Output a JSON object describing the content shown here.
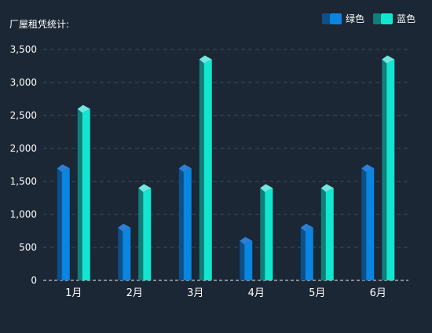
{
  "chart_data": {
    "type": "bar",
    "title": "厂屋租凭统计:",
    "categories": [
      "1月",
      "2月",
      "3月",
      "4月",
      "5月",
      "6月"
    ],
    "series": [
      {
        "name": "绿色",
        "values": [
          1700,
          800,
          1700,
          600,
          800,
          1700
        ],
        "color_front": "#0a85e0",
        "color_side": "#0d4f88",
        "color_top": "#2a7fd6"
      },
      {
        "name": "蓝色",
        "values": [
          2600,
          1400,
          3350,
          1400,
          1400,
          3350
        ],
        "color_front": "#12e6d0",
        "color_side": "#0f7f7c",
        "color_top": "#6fe8df"
      }
    ],
    "yticks": [
      0,
      500,
      1000,
      1500,
      2000,
      2500,
      3000,
      3500
    ],
    "ytick_labels": [
      "0",
      "500",
      "1,000",
      "1,500",
      "2,000",
      "2,500",
      "3,000",
      "3,500"
    ],
    "ylim": [
      0,
      3500
    ],
    "grid": true,
    "legend_position": "top-right"
  },
  "colors": {
    "background": "#1b2735",
    "text": "#ffffff",
    "grid": "#3a4a5c"
  }
}
